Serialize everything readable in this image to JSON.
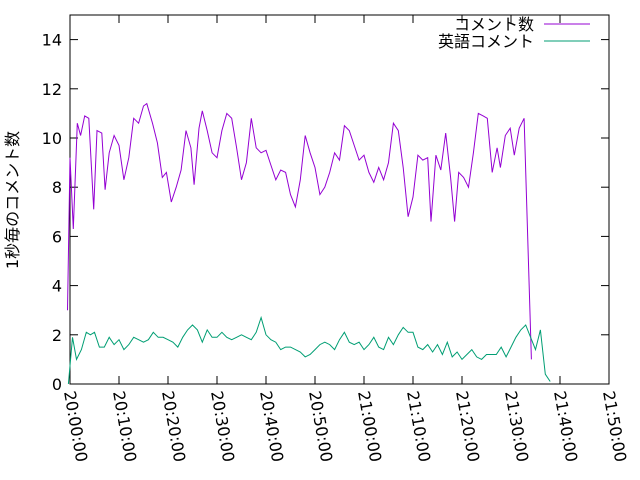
{
  "chart_data": {
    "type": "line",
    "ylabel": "1秒毎のコメント数",
    "ylim": [
      0,
      15
    ],
    "yticks": [
      0,
      2,
      4,
      6,
      8,
      10,
      12,
      14
    ],
    "ytick_labels": [
      "0",
      "2",
      "4",
      "6",
      "8",
      "10",
      "12",
      "14"
    ],
    "xlim": [
      "20:00:00",
      "21:50:00"
    ],
    "xticks": [
      "20:00:00",
      "20:10:00",
      "20:20:00",
      "20:30:00",
      "20:40:00",
      "20:50:00",
      "21:00:00",
      "21:10:00",
      "21:20:00",
      "21:30:00",
      "21:40:00",
      "21:50:00"
    ],
    "grid": false,
    "legend_position": "top-right",
    "series": [
      {
        "name": "コメント数",
        "color": "#9400d3",
        "points": [
          [
            "19:59:30",
            3.0
          ],
          [
            "20:00:00",
            9.2
          ],
          [
            "20:00:40",
            6.3
          ],
          [
            "20:01:30",
            10.6
          ],
          [
            "20:02:10",
            10.1
          ],
          [
            "20:03:00",
            10.9
          ],
          [
            "20:03:50",
            10.8
          ],
          [
            "20:04:50",
            7.1
          ],
          [
            "20:05:30",
            10.3
          ],
          [
            "20:06:30",
            10.2
          ],
          [
            "20:07:10",
            7.9
          ],
          [
            "20:08:00",
            9.4
          ],
          [
            "20:09:00",
            10.1
          ],
          [
            "20:10:00",
            9.7
          ],
          [
            "20:11:00",
            8.3
          ],
          [
            "20:12:00",
            9.2
          ],
          [
            "20:13:00",
            10.8
          ],
          [
            "20:14:00",
            10.6
          ],
          [
            "20:15:00",
            11.3
          ],
          [
            "20:15:40",
            11.4
          ],
          [
            "20:16:50",
            10.6
          ],
          [
            "20:17:50",
            9.8
          ],
          [
            "20:18:50",
            8.4
          ],
          [
            "20:19:40",
            8.6
          ],
          [
            "20:20:40",
            7.4
          ],
          [
            "20:21:40",
            8.0
          ],
          [
            "20:22:40",
            8.7
          ],
          [
            "20:23:40",
            10.3
          ],
          [
            "20:24:40",
            9.6
          ],
          [
            "20:25:20",
            8.1
          ],
          [
            "20:26:20",
            10.4
          ],
          [
            "20:27:00",
            11.1
          ],
          [
            "20:28:00",
            10.3
          ],
          [
            "20:29:00",
            9.4
          ],
          [
            "20:30:00",
            9.2
          ],
          [
            "20:31:00",
            10.3
          ],
          [
            "20:32:00",
            11.0
          ],
          [
            "20:33:00",
            10.8
          ],
          [
            "20:34:00",
            9.6
          ],
          [
            "20:35:00",
            8.3
          ],
          [
            "20:36:00",
            9.0
          ],
          [
            "20:37:00",
            10.8
          ],
          [
            "20:38:00",
            9.6
          ],
          [
            "20:39:00",
            9.4
          ],
          [
            "20:40:00",
            9.5
          ],
          [
            "20:41:00",
            8.9
          ],
          [
            "20:42:00",
            8.3
          ],
          [
            "20:43:00",
            8.7
          ],
          [
            "20:44:00",
            8.6
          ],
          [
            "20:45:00",
            7.7
          ],
          [
            "20:46:00",
            7.2
          ],
          [
            "20:47:00",
            8.3
          ],
          [
            "20:48:00",
            10.1
          ],
          [
            "20:49:00",
            9.4
          ],
          [
            "20:50:00",
            8.8
          ],
          [
            "20:51:00",
            7.7
          ],
          [
            "20:52:00",
            8.0
          ],
          [
            "20:53:00",
            8.6
          ],
          [
            "20:54:00",
            9.4
          ],
          [
            "20:55:00",
            9.1
          ],
          [
            "20:56:00",
            10.5
          ],
          [
            "20:57:00",
            10.3
          ],
          [
            "20:58:00",
            9.7
          ],
          [
            "20:59:00",
            9.1
          ],
          [
            "21:00:00",
            9.3
          ],
          [
            "21:01:00",
            8.6
          ],
          [
            "21:02:00",
            8.2
          ],
          [
            "21:03:00",
            8.8
          ],
          [
            "21:04:00",
            8.3
          ],
          [
            "21:05:00",
            9.0
          ],
          [
            "21:06:00",
            10.6
          ],
          [
            "21:07:00",
            10.3
          ],
          [
            "21:08:00",
            8.8
          ],
          [
            "21:09:00",
            6.8
          ],
          [
            "21:10:00",
            7.6
          ],
          [
            "21:11:00",
            9.3
          ],
          [
            "21:12:00",
            9.1
          ],
          [
            "21:13:00",
            9.2
          ],
          [
            "21:13:40",
            6.6
          ],
          [
            "21:14:40",
            9.3
          ],
          [
            "21:15:40",
            8.7
          ],
          [
            "21:16:40",
            10.2
          ],
          [
            "21:17:40",
            8.4
          ],
          [
            "21:18:30",
            6.6
          ],
          [
            "21:19:20",
            8.6
          ],
          [
            "21:20:20",
            8.4
          ],
          [
            "21:21:20",
            8.0
          ],
          [
            "21:22:20",
            9.4
          ],
          [
            "21:23:20",
            11.0
          ],
          [
            "21:24:20",
            10.9
          ],
          [
            "21:25:10",
            10.8
          ],
          [
            "21:26:10",
            8.6
          ],
          [
            "21:27:10",
            9.6
          ],
          [
            "21:27:50",
            8.8
          ],
          [
            "21:28:50",
            10.1
          ],
          [
            "21:29:50",
            10.4
          ],
          [
            "21:30:40",
            9.3
          ],
          [
            "21:31:40",
            10.4
          ],
          [
            "21:32:40",
            10.8
          ],
          [
            "21:34:10",
            1.0
          ]
        ]
      },
      {
        "name": "英語コメント",
        "color": "#009e73",
        "points": [
          [
            "19:59:40",
            0.0
          ],
          [
            "20:00:30",
            1.9
          ],
          [
            "20:01:20",
            1.0
          ],
          [
            "20:02:20",
            1.4
          ],
          [
            "20:03:20",
            2.1
          ],
          [
            "20:04:10",
            2.0
          ],
          [
            "20:05:00",
            2.1
          ],
          [
            "20:06:00",
            1.5
          ],
          [
            "20:07:00",
            1.5
          ],
          [
            "20:08:00",
            1.9
          ],
          [
            "20:09:00",
            1.6
          ],
          [
            "20:10:00",
            1.8
          ],
          [
            "20:11:00",
            1.4
          ],
          [
            "20:12:00",
            1.6
          ],
          [
            "20:13:00",
            1.9
          ],
          [
            "20:14:00",
            1.8
          ],
          [
            "20:15:00",
            1.7
          ],
          [
            "20:16:00",
            1.8
          ],
          [
            "20:17:00",
            2.1
          ],
          [
            "20:18:00",
            1.9
          ],
          [
            "20:19:00",
            1.9
          ],
          [
            "20:20:00",
            1.8
          ],
          [
            "20:21:00",
            1.7
          ],
          [
            "20:22:00",
            1.5
          ],
          [
            "20:23:00",
            1.9
          ],
          [
            "20:24:00",
            2.2
          ],
          [
            "20:25:00",
            2.4
          ],
          [
            "20:26:00",
            2.2
          ],
          [
            "20:27:00",
            1.7
          ],
          [
            "20:28:00",
            2.2
          ],
          [
            "20:29:00",
            1.9
          ],
          [
            "20:30:00",
            1.9
          ],
          [
            "20:31:00",
            2.1
          ],
          [
            "20:32:00",
            1.9
          ],
          [
            "20:33:00",
            1.8
          ],
          [
            "20:34:00",
            1.9
          ],
          [
            "20:35:00",
            2.0
          ],
          [
            "20:36:00",
            1.9
          ],
          [
            "20:37:00",
            1.8
          ],
          [
            "20:38:00",
            2.1
          ],
          [
            "20:39:00",
            2.7
          ],
          [
            "20:40:00",
            2.0
          ],
          [
            "20:41:00",
            1.8
          ],
          [
            "20:42:00",
            1.7
          ],
          [
            "20:43:00",
            1.4
          ],
          [
            "20:44:00",
            1.5
          ],
          [
            "20:45:00",
            1.5
          ],
          [
            "20:46:00",
            1.4
          ],
          [
            "20:47:00",
            1.3
          ],
          [
            "20:48:00",
            1.1
          ],
          [
            "20:49:00",
            1.2
          ],
          [
            "20:50:00",
            1.4
          ],
          [
            "20:51:00",
            1.6
          ],
          [
            "20:52:00",
            1.7
          ],
          [
            "20:53:00",
            1.6
          ],
          [
            "20:54:00",
            1.4
          ],
          [
            "20:55:00",
            1.8
          ],
          [
            "20:56:00",
            2.1
          ],
          [
            "20:57:00",
            1.7
          ],
          [
            "20:58:00",
            1.6
          ],
          [
            "20:59:00",
            1.7
          ],
          [
            "21:00:00",
            1.4
          ],
          [
            "21:01:00",
            1.6
          ],
          [
            "21:02:00",
            1.9
          ],
          [
            "21:03:00",
            1.5
          ],
          [
            "21:04:00",
            1.4
          ],
          [
            "21:05:00",
            1.9
          ],
          [
            "21:06:00",
            1.6
          ],
          [
            "21:07:00",
            2.0
          ],
          [
            "21:08:00",
            2.3
          ],
          [
            "21:09:00",
            2.1
          ],
          [
            "21:10:00",
            2.1
          ],
          [
            "21:11:00",
            1.5
          ],
          [
            "21:12:00",
            1.4
          ],
          [
            "21:13:00",
            1.6
          ],
          [
            "21:14:00",
            1.3
          ],
          [
            "21:15:00",
            1.6
          ],
          [
            "21:16:00",
            1.2
          ],
          [
            "21:17:00",
            1.7
          ],
          [
            "21:18:00",
            1.1
          ],
          [
            "21:19:00",
            1.3
          ],
          [
            "21:20:00",
            1.0
          ],
          [
            "21:21:00",
            1.2
          ],
          [
            "21:22:00",
            1.4
          ],
          [
            "21:23:00",
            1.1
          ],
          [
            "21:24:00",
            1.0
          ],
          [
            "21:25:00",
            1.2
          ],
          [
            "21:26:00",
            1.2
          ],
          [
            "21:27:00",
            1.2
          ],
          [
            "21:28:00",
            1.5
          ],
          [
            "21:29:00",
            1.1
          ],
          [
            "21:30:00",
            1.5
          ],
          [
            "21:31:00",
            1.9
          ],
          [
            "21:32:00",
            2.2
          ],
          [
            "21:33:00",
            2.4
          ],
          [
            "21:34:00",
            1.9
          ],
          [
            "21:35:00",
            1.4
          ],
          [
            "21:36:00",
            2.2
          ],
          [
            "21:37:00",
            0.4
          ],
          [
            "21:38:00",
            0.1
          ]
        ]
      }
    ]
  }
}
